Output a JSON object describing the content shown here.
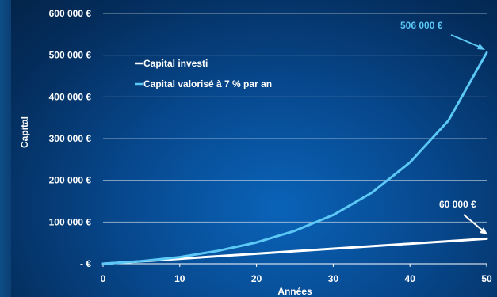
{
  "chart_data": {
    "type": "line",
    "title": "",
    "xlabel": "Années",
    "ylabel": "Capital",
    "xlim": [
      0,
      50
    ],
    "ylim": [
      0,
      600000
    ],
    "x_ticks": [
      "0",
      "10",
      "20",
      "30",
      "40",
      "50"
    ],
    "y_ticks": [
      "-  €",
      "100 000 €",
      "200 000 €",
      "300 000 €",
      "400 000 €",
      "500 000 €",
      "600 000 €"
    ],
    "grid": true,
    "legend_position": "upper-left",
    "series": [
      {
        "name": "Capital investi",
        "color": "#ffffff",
        "x": [
          0,
          10,
          20,
          30,
          40,
          50
        ],
        "y": [
          0,
          12000,
          24000,
          36000,
          48000,
          60000
        ]
      },
      {
        "name": "Capital valorisé à 7 % par an",
        "color": "#5bc8f5",
        "x": [
          0,
          5,
          10,
          15,
          20,
          25,
          30,
          35,
          40,
          45,
          50
        ],
        "y": [
          0,
          6000,
          16000,
          31000,
          51000,
          79000,
          117000,
          170000,
          243000,
          343000,
          506000
        ]
      }
    ],
    "annotations": [
      {
        "text": "506 000 €",
        "color": "#5bc8f5"
      },
      {
        "text": "60 000 €",
        "color": "#ffffff"
      }
    ]
  }
}
